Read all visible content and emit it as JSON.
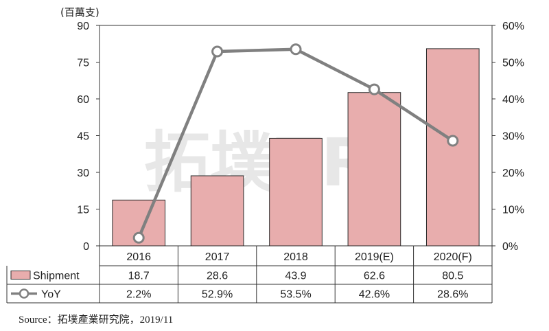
{
  "chart_data": {
    "type": "bar",
    "categories": [
      "2016",
      "2017",
      "2018",
      "2019(E)",
      "2020(F)"
    ],
    "series": [
      {
        "name": "Shipment",
        "type": "bar",
        "axis": "left",
        "values": [
          18.7,
          28.6,
          43.9,
          62.6,
          80.5
        ],
        "labels": [
          "18.7",
          "28.6",
          "43.9",
          "62.6",
          "80.5"
        ]
      },
      {
        "name": "YoY",
        "type": "line",
        "axis": "right",
        "values": [
          2.2,
          52.9,
          53.5,
          42.6,
          28.6
        ],
        "labels": [
          "2.2%",
          "52.9%",
          "53.5%",
          "42.6%",
          "28.6%"
        ]
      }
    ],
    "ylabel": "(百萬支)",
    "ylim": [
      0,
      90
    ],
    "yticks": [
      "0",
      "15",
      "30",
      "45",
      "60",
      "75",
      "90"
    ],
    "y2lim": [
      0,
      60
    ],
    "y2ticks": [
      "0%",
      "10%",
      "20%",
      "30%",
      "40%",
      "50%",
      "60%"
    ],
    "source": "Source：拓墣產業研究院，2019/11",
    "watermark": "拓墣TRi",
    "colors": {
      "bar": "#e8adad",
      "bar_edge": "#2b2b2b",
      "line": "#808080",
      "marker_fill": "#ffffff"
    }
  }
}
